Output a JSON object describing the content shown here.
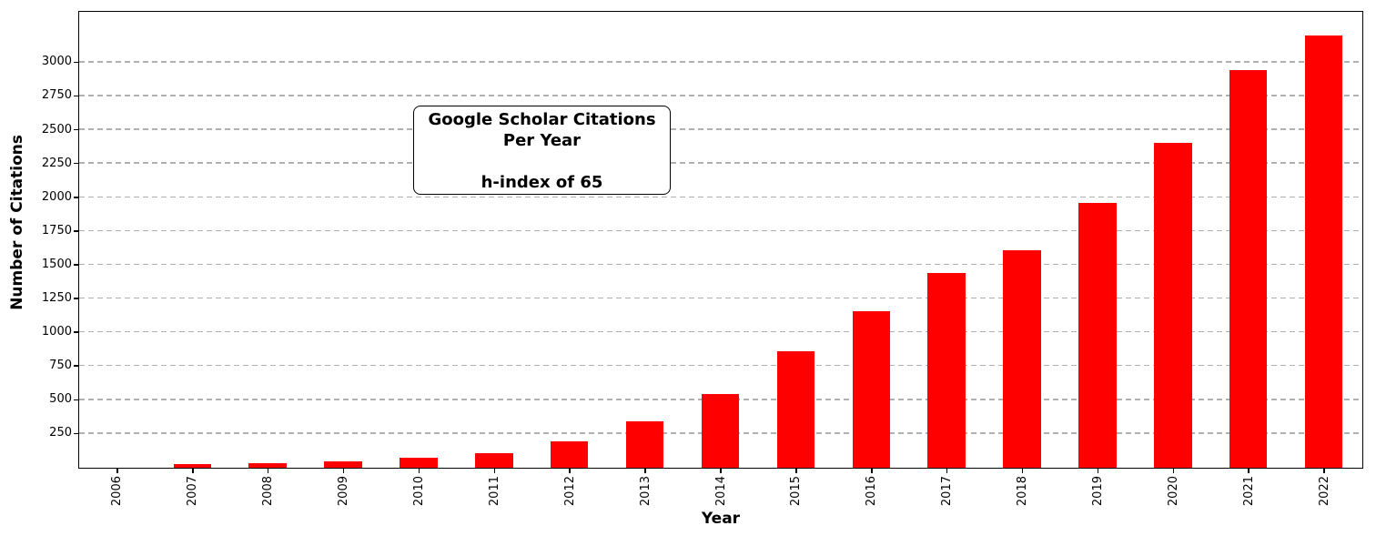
{
  "figure": {
    "background": "#ffffff"
  },
  "chart_data": {
    "type": "bar",
    "title": "Google Scholar Citations Per Year",
    "annotation": {
      "lines": [
        "Google Scholar Citations",
        "Per Year",
        "",
        "h-index of 65"
      ]
    },
    "xlabel": "Year",
    "ylabel": "Number of Citations",
    "categories": [
      "2006",
      "2007",
      "2008",
      "2009",
      "2010",
      "2011",
      "2012",
      "2013",
      "2014",
      "2015",
      "2016",
      "2017",
      "2018",
      "2019",
      "2020",
      "2021",
      "2022"
    ],
    "values": [
      0,
      30,
      36,
      50,
      72,
      106,
      193,
      342,
      548,
      862,
      1160,
      1441,
      1611,
      1959,
      2408,
      2948,
      3200
    ],
    "yticks": [
      250,
      500,
      750,
      1000,
      1250,
      1500,
      1750,
      2000,
      2250,
      2500,
      2750,
      3000
    ],
    "ylim": [
      0,
      3370
    ],
    "bar_width_fraction": 0.5,
    "bar_color": "#ff0000",
    "grid_color": "#b0b0b0",
    "axis_color": "#000000",
    "grid": "horizontal-dashed",
    "legend": "none"
  }
}
